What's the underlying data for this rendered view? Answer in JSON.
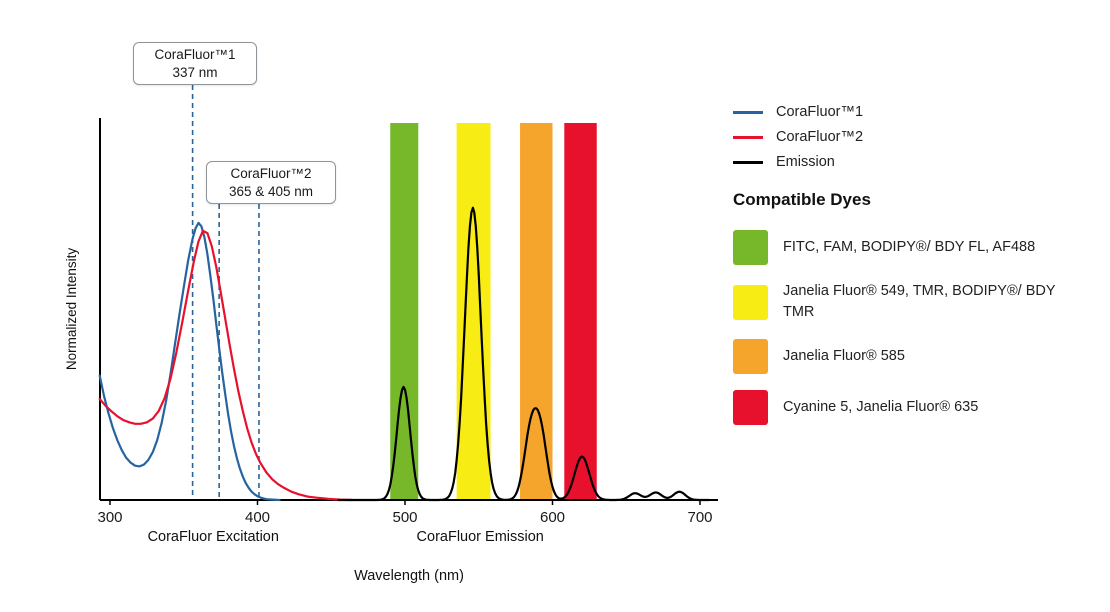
{
  "chart_data": {
    "type": "line",
    "xlabel": "Wavelength (nm)",
    "ylabel": "Normalized Intensity",
    "xlim": [
      300,
      710
    ],
    "ylim": [
      0,
      1.05
    ],
    "x_ticks": [
      300,
      400,
      500,
      600,
      700
    ],
    "axis_group_labels": [
      {
        "text": "CoraFluor Excitation",
        "nm": 370
      },
      {
        "text": "CoraFluor Emission",
        "nm": 551
      }
    ],
    "annotations": [
      {
        "title": "CoraFluor™1",
        "value": "337 nm"
      },
      {
        "title": "CoraFluor™2",
        "value": "365 & 405 nm"
      }
    ],
    "dashed_line_color": "#2a6496",
    "dashed_markers": [
      {
        "nm": 356
      },
      {
        "nm": 374
      },
      {
        "nm": 401
      }
    ],
    "bands": [
      {
        "name": "green",
        "color": "#76b82a",
        "from_nm": 490,
        "to_nm": 509
      },
      {
        "name": "yellow",
        "color": "#f7ec13",
        "from_nm": 535,
        "to_nm": 558
      },
      {
        "name": "orange",
        "color": "#f5a42c",
        "from_nm": 578,
        "to_nm": 600
      },
      {
        "name": "red",
        "color": "#e8112d",
        "from_nm": 608,
        "to_nm": 630
      }
    ],
    "excitation_series": [
      {
        "name": "CoraFluor™1",
        "color": "#27639f",
        "points": [
          [
            293,
            0.33
          ],
          [
            296,
            0.275
          ],
          [
            299,
            0.23
          ],
          [
            302,
            0.19
          ],
          [
            305,
            0.158
          ],
          [
            308,
            0.132
          ],
          [
            311,
            0.112
          ],
          [
            314,
            0.099
          ],
          [
            317,
            0.091
          ],
          [
            320,
            0.089
          ],
          [
            323,
            0.094
          ],
          [
            326,
            0.106
          ],
          [
            329,
            0.127
          ],
          [
            332,
            0.159
          ],
          [
            335,
            0.204
          ],
          [
            338,
            0.263
          ],
          [
            341,
            0.334
          ],
          [
            344,
            0.412
          ],
          [
            347,
            0.49
          ],
          [
            350,
            0.565
          ],
          [
            353,
            0.636
          ],
          [
            356,
            0.693
          ],
          [
            358,
            0.721
          ],
          [
            360,
            0.735
          ],
          [
            362,
            0.726
          ],
          [
            364,
            0.697
          ],
          [
            366,
            0.652
          ],
          [
            368,
            0.596
          ],
          [
            370,
            0.534
          ],
          [
            372,
            0.468
          ],
          [
            374,
            0.402
          ],
          [
            376,
            0.34
          ],
          [
            378,
            0.283
          ],
          [
            380,
            0.23
          ],
          [
            382,
            0.184
          ],
          [
            384,
            0.144
          ],
          [
            386,
            0.111
          ],
          [
            388,
            0.084
          ],
          [
            390,
            0.062
          ],
          [
            392,
            0.045
          ],
          [
            394,
            0.032
          ],
          [
            396,
            0.022
          ],
          [
            398,
            0.015
          ],
          [
            400,
            0.01
          ],
          [
            403,
            0.005
          ],
          [
            406,
            0.002
          ],
          [
            410,
            0.001
          ],
          [
            415,
            0
          ]
        ]
      },
      {
        "name": "CoraFluor™2",
        "color": "#e8112d",
        "points": [
          [
            293,
            0.268
          ],
          [
            297,
            0.25
          ],
          [
            301,
            0.235
          ],
          [
            305,
            0.222
          ],
          [
            309,
            0.212
          ],
          [
            313,
            0.206
          ],
          [
            317,
            0.202
          ],
          [
            321,
            0.202
          ],
          [
            325,
            0.206
          ],
          [
            329,
            0.216
          ],
          [
            333,
            0.236
          ],
          [
            337,
            0.27
          ],
          [
            341,
            0.322
          ],
          [
            345,
            0.392
          ],
          [
            349,
            0.472
          ],
          [
            353,
            0.556
          ],
          [
            357,
            0.636
          ],
          [
            360,
            0.686
          ],
          [
            363,
            0.714
          ],
          [
            366,
            0.708
          ],
          [
            369,
            0.673
          ],
          [
            372,
            0.619
          ],
          [
            375,
            0.553
          ],
          [
            378,
            0.483
          ],
          [
            381,
            0.414
          ],
          [
            384,
            0.349
          ],
          [
            387,
            0.289
          ],
          [
            390,
            0.236
          ],
          [
            393,
            0.19
          ],
          [
            396,
            0.152
          ],
          [
            399,
            0.122
          ],
          [
            402,
            0.098
          ],
          [
            406,
            0.073
          ],
          [
            410,
            0.055
          ],
          [
            414,
            0.042
          ],
          [
            418,
            0.032
          ],
          [
            423,
            0.022
          ],
          [
            428,
            0.015
          ],
          [
            434,
            0.009
          ],
          [
            440,
            0.006
          ],
          [
            448,
            0.003
          ],
          [
            456,
            0.001
          ],
          [
            464,
            0
          ]
        ]
      }
    ],
    "emission": {
      "name": "Emission",
      "color": "#000000",
      "range_nm": [
        455,
        706
      ],
      "peaks": [
        {
          "center": 499,
          "height": 0.3,
          "width": 4.5
        },
        {
          "center": 546,
          "height": 0.775,
          "width": 5.5
        },
        {
          "center": 585,
          "height": 0.165,
          "width": 4.5
        },
        {
          "center": 592,
          "height": 0.165,
          "width": 4.5
        },
        {
          "center": 620,
          "height": 0.115,
          "width": 5
        },
        {
          "center": 656,
          "height": 0.018,
          "width": 4
        },
        {
          "center": 670,
          "height": 0.02,
          "width": 4
        },
        {
          "center": 686,
          "height": 0.022,
          "width": 4
        }
      ]
    }
  },
  "legend": {
    "items": [
      {
        "label": "CoraFluor™1",
        "color": "#27639f"
      },
      {
        "label": "CoraFluor™2",
        "color": "#e8112d"
      },
      {
        "label": "Emission",
        "color": "#000000"
      }
    ]
  },
  "dyes": {
    "heading": "Compatible Dyes",
    "items": [
      {
        "color": "#76b82a",
        "label": "FITC, FAM, BODIPY®/ BDY FL, AF488"
      },
      {
        "color": "#f7ec13",
        "label": "Janelia Fluor® 549, TMR, BODIPY®/ BDY TMR"
      },
      {
        "color": "#f5a42c",
        "label": "Janelia Fluor® 585"
      },
      {
        "color": "#e8112d",
        "label": "Cyanine 5, Janelia Fluor® 635"
      }
    ]
  }
}
